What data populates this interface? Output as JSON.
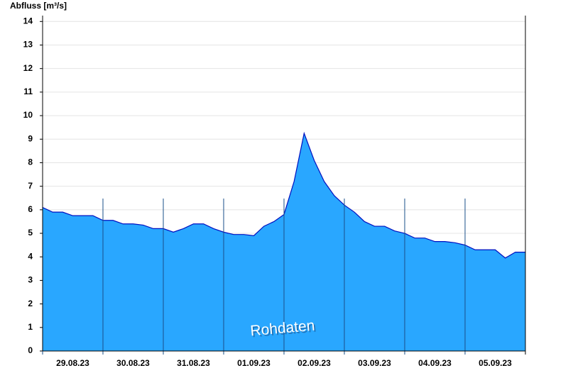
{
  "chart_data": {
    "type": "area",
    "ylabel": "Abfluss [m³/s]",
    "annotation": "Rohdaten",
    "categories": [
      null,
      null,
      null,
      "29.08.23",
      null,
      null,
      null,
      null,
      null,
      "30.08.23",
      null,
      null,
      null,
      null,
      null,
      "31.08.23",
      null,
      null,
      null,
      null,
      null,
      "01.09.23",
      null,
      null,
      null,
      null,
      null,
      "02.09.23",
      null,
      null,
      null,
      null,
      null,
      "03.09.23",
      null,
      null,
      null,
      null,
      null,
      "04.09.23",
      null,
      null,
      null,
      null,
      null,
      "05.09.23",
      null,
      null,
      null
    ],
    "series": [
      {
        "name": "Abfluss",
        "color": "#29a7ff",
        "values": [
          6.1,
          5.9,
          5.9,
          5.75,
          5.75,
          5.75,
          5.55,
          5.55,
          5.4,
          5.4,
          5.35,
          5.2,
          5.2,
          5.05,
          5.2,
          5.4,
          5.4,
          5.2,
          5.05,
          4.95,
          4.95,
          4.9,
          5.3,
          5.5,
          5.8,
          7.2,
          9.25,
          8.1,
          7.2,
          6.6,
          6.2,
          5.9,
          5.5,
          5.3,
          5.3,
          5.1,
          5.0,
          4.8,
          4.8,
          4.65,
          4.65,
          4.6,
          4.5,
          4.3,
          4.3,
          4.3,
          3.95,
          4.2,
          4.2
        ]
      }
    ],
    "ylim": [
      0,
      14.25
    ],
    "yticks": [
      0,
      1,
      2,
      3,
      4,
      5,
      6,
      7,
      8,
      9,
      10,
      11,
      12,
      13,
      14
    ],
    "grid": true
  }
}
